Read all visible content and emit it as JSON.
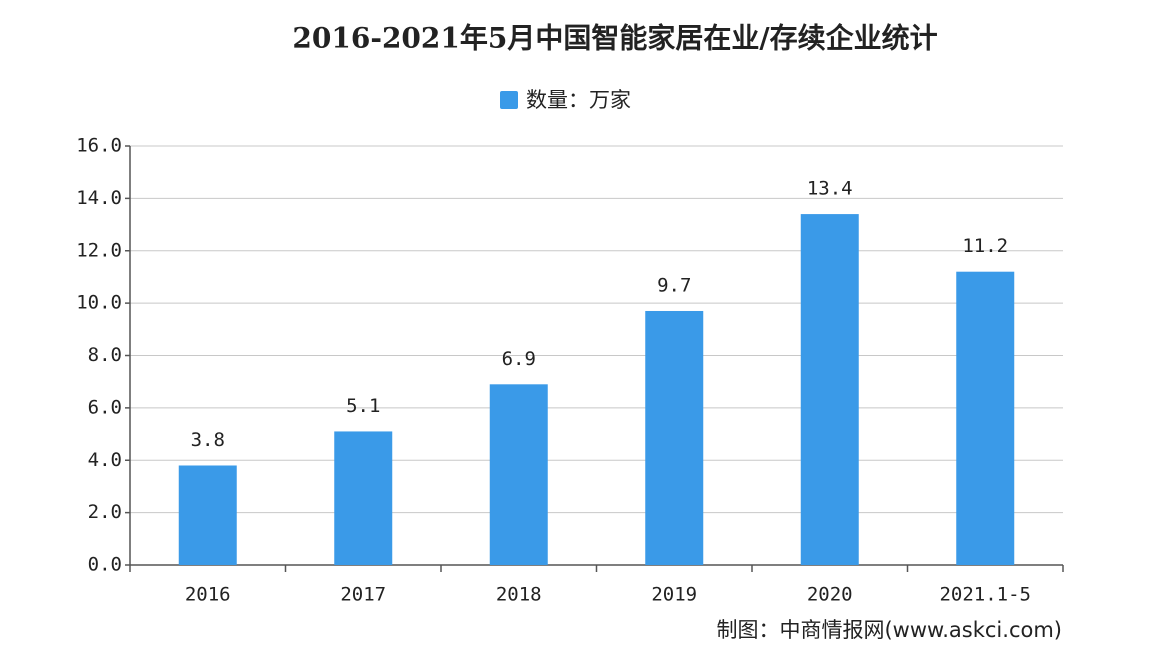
{
  "chart_data": {
    "type": "bar",
    "title": "2016-2021年5月中国智能家居在业/存续企业统计",
    "legend": "数量：万家",
    "categories": [
      "2016",
      "2017",
      "2018",
      "2019",
      "2020",
      "2021.1-5"
    ],
    "values": [
      3.8,
      5.1,
      6.9,
      9.7,
      13.4,
      11.2
    ],
    "color": "#3a9ae8",
    "ylim": [
      0,
      16
    ],
    "yticks": [
      {
        "value": 0,
        "label": "0.0"
      },
      {
        "value": 2,
        "label": "2.0"
      },
      {
        "value": 4,
        "label": "4.0"
      },
      {
        "value": 6,
        "label": "6.0"
      },
      {
        "value": 8,
        "label": "8.0"
      },
      {
        "value": 10,
        "label": "10.0"
      },
      {
        "value": 12,
        "label": "12.0"
      },
      {
        "value": 14,
        "label": "14.0"
      },
      {
        "value": 16,
        "label": "16.0"
      }
    ],
    "grid": true,
    "source": "制图：中商情报网(www.askci.com)"
  }
}
